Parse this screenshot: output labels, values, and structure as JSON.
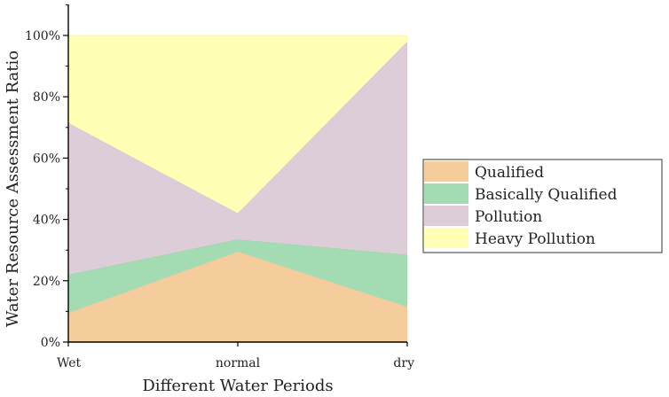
{
  "chart_data": {
    "type": "area",
    "stacked": true,
    "stack_mode": "percent",
    "categories": [
      "Wet",
      "normal",
      "dry"
    ],
    "series": [
      {
        "name": "Qualified",
        "values": [
          9.5,
          29.5,
          11.5
        ],
        "color": "#f5cd9c"
      },
      {
        "name": "Basically Qualified",
        "values": [
          12.5,
          4.0,
          17.0
        ],
        "color": "#a3dcb2"
      },
      {
        "name": "Pollution",
        "values": [
          49.5,
          8.5,
          69.5
        ],
        "color": "#dccdd8"
      },
      {
        "name": "Heavy Pollution",
        "values": [
          28.5,
          58.0,
          2.0
        ],
        "color": "#ffffb5"
      }
    ],
    "xlabel": "Different Water Periods",
    "ylabel": "Water Resource Assessment Ratio",
    "ylim": [
      0,
      100
    ],
    "y_ticks": [
      "0%",
      "20%",
      "40%",
      "60%",
      "80%",
      "100%"
    ],
    "grid": false,
    "legend_position": "right"
  }
}
